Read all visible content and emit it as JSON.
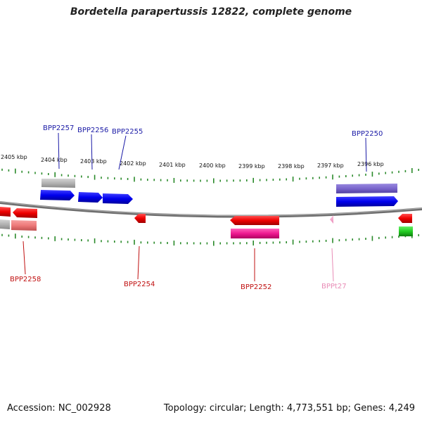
{
  "title": "Bordetella parapertussis 12822, complete genome",
  "footer": {
    "accession": "Accession: NC_002928",
    "summary": "Topology: circular; Length: 4,773,551 bp; Genes: 4,249"
  },
  "colors": {
    "background": "#ffffff",
    "backbone": "#7a7a7a",
    "ticks": "#2a8a2a",
    "label_blue": "#1a1aa6",
    "label_red": "#c01010",
    "label_pink": "#e88cb6"
  },
  "scale_labels": [
    "2405 kbp",
    "2404 kbp",
    "2403 kbp",
    "2402 kbp",
    "2401 kbp",
    "2400 kbp",
    "2399 kbp",
    "2398 kbp",
    "2397 kbp",
    "2396 kbp"
  ],
  "gene_labels": [
    {
      "id": "BPP2257",
      "color": "#1a1aa6"
    },
    {
      "id": "BPP2256",
      "color": "#1a1aa6"
    },
    {
      "id": "BPP2255",
      "color": "#1a1aa6"
    },
    {
      "id": "BPP2250",
      "color": "#1a1aa6"
    },
    {
      "id": "BPP2258",
      "color": "#c01010"
    },
    {
      "id": "BPP2254",
      "color": "#c01010"
    },
    {
      "id": "BPP2252",
      "color": "#c01010"
    },
    {
      "id": "BPPt27",
      "color": "#e88cb6"
    }
  ]
}
